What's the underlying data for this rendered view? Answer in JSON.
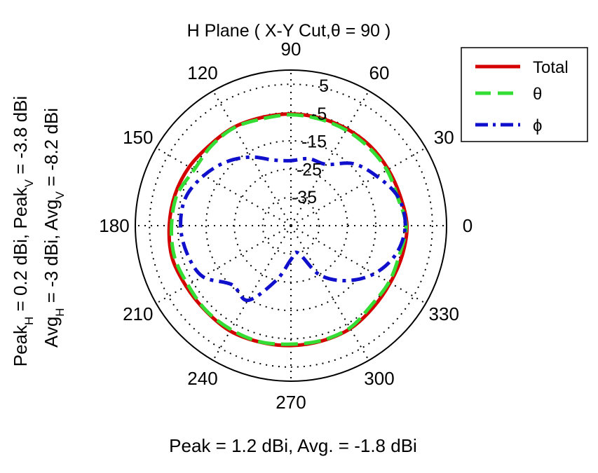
{
  "chart_data": {
    "type": "polar-line",
    "title_main": "H Plane ( X-Y Cut,",
    "title_theta": "θ",
    "title_rest": " = 90 )",
    "angle_unit": "deg",
    "angle_ticks": [
      0,
      30,
      60,
      90,
      120,
      150,
      180,
      210,
      240,
      270,
      300,
      330
    ],
    "angle_tick_labels": [
      "0",
      "30",
      "60",
      "90",
      "120",
      "150",
      "180",
      "210",
      "240",
      "270",
      "300",
      "330"
    ],
    "radial_ticks": [
      -35,
      -25,
      -15,
      -5,
      5
    ],
    "radial_tick_labels": [
      "-35",
      "-25",
      "-15",
      "-5",
      "5"
    ],
    "rlim": [
      -45,
      10
    ],
    "grid": true,
    "legend_position": "top-right",
    "legend": [
      "Total",
      "θ",
      "ϕ"
    ],
    "left_text": {
      "line1": {
        "p1": "Peak",
        "s1": "H",
        "p2": " = 0.2 dBi, Peak",
        "s2": "V",
        "p3": " = -3.8 dBi"
      },
      "line2": {
        "p1": "Avg",
        "s1": "H",
        "p2": " = -3 dBi, Avg",
        "s2": "V",
        "p3": " = -8.2 dBi"
      }
    },
    "bottom_text": "Peak = 1.2 dBi, Avg. = -1.8 dBi",
    "series": [
      {
        "name": "Total",
        "color": "#d40000",
        "dash": "solid",
        "angles": [
          0,
          15,
          30,
          45,
          60,
          75,
          90,
          105,
          120,
          135,
          150,
          165,
          180,
          195,
          210,
          225,
          240,
          255,
          270,
          285,
          300,
          315,
          330,
          345
        ],
        "values": [
          -4.0,
          -5.0,
          -5.3,
          -5.3,
          -5.5,
          -5.6,
          -5.5,
          -5.4,
          -4.8,
          -4.6,
          -3.5,
          -2.6,
          -2.0,
          -1.5,
          -2.2,
          -2.4,
          -2.0,
          -2.4,
          -2.6,
          -2.8,
          -3.0,
          -4.0,
          -4.5,
          -4.3
        ]
      },
      {
        "name": "θ",
        "color": "#33dd33",
        "dash": "dash",
        "angles": [
          0,
          15,
          30,
          45,
          60,
          75,
          90,
          105,
          120,
          135,
          150,
          165,
          180,
          195,
          210,
          225,
          240,
          255,
          270,
          285,
          300,
          315,
          330,
          345
        ],
        "values": [
          -4.3,
          -6.0,
          -5.8,
          -6.0,
          -6.0,
          -6.0,
          -5.8,
          -5.9,
          -5.0,
          -5.2,
          -5.5,
          -3.3,
          -2.8,
          -2.4,
          -3.0,
          -2.6,
          -2.6,
          -2.5,
          -3.1,
          -3.0,
          -3.3,
          -5.0,
          -5.0,
          -5.3
        ]
      },
      {
        "name": "ϕ",
        "color": "#1010cc",
        "dash": "dashdot",
        "angles": [
          0,
          15,
          30,
          45,
          60,
          75,
          90,
          105,
          120,
          135,
          150,
          165,
          180,
          195,
          210,
          225,
          240,
          255,
          270,
          285,
          300,
          315,
          330,
          345
        ],
        "values": [
          -4.6,
          -5.8,
          -10.0,
          -14.0,
          -20.0,
          -20.5,
          -22.0,
          -21.0,
          -17.0,
          -13.0,
          -9.5,
          -6.5,
          -6.0,
          -7.0,
          -9.0,
          -15.5,
          -14.5,
          -25.0,
          -33.0,
          -35.0,
          -25.0,
          -17.5,
          -11.0,
          -6.5
        ]
      }
    ]
  }
}
